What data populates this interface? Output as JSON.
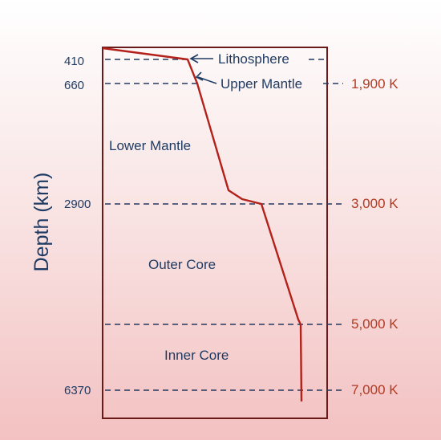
{
  "axis": {
    "ylabel": "Depth (km)"
  },
  "depth_ticks": [
    "410",
    "660",
    "2900",
    "6370"
  ],
  "temperatures": [
    "1,900 K",
    "3,000 K",
    "5,000 K",
    "7,000 K"
  ],
  "layers": {
    "lithosphere": "Lithosphere",
    "upper_mantle": "Upper Mantle",
    "lower_mantle": "Lower Mantle",
    "outer_core": "Outer Core",
    "inner_core": "Inner Core"
  },
  "colors": {
    "curve": "#b3211a",
    "box": "#6b1a1a",
    "dash": "#1f3b63",
    "temp_text": "#b33a22",
    "label_text": "#1f3b63"
  }
}
